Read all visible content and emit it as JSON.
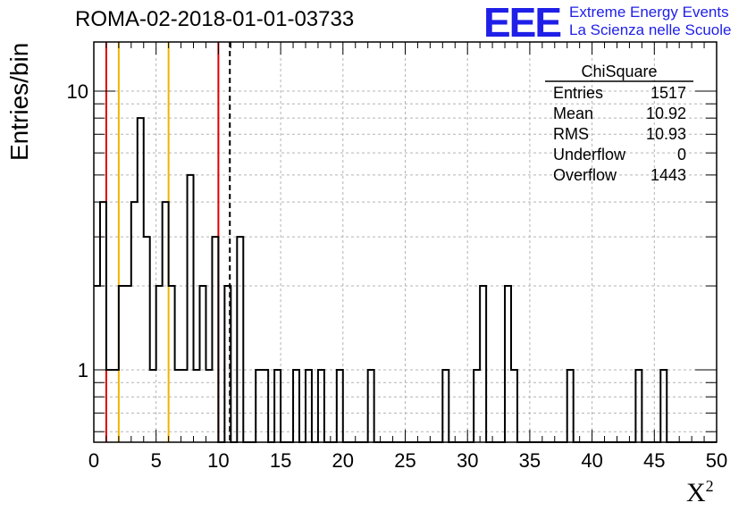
{
  "title": "ROMA-02-2018-01-01-03733",
  "brand": {
    "logo_text": "EEE",
    "line1": "Extreme Energy Events",
    "line2": "La Scienza nelle Scuole",
    "color": "#1f1fe8"
  },
  "stats_box": {
    "name": "ChiSquare",
    "rows": [
      {
        "label": "Entries",
        "value": "1517"
      },
      {
        "label": "Mean",
        "value": "10.92"
      },
      {
        "label": "RMS",
        "value": "10.93"
      },
      {
        "label": "Underflow",
        "value": "0"
      },
      {
        "label": "Overflow",
        "value": "1443"
      }
    ]
  },
  "chart_data": {
    "type": "histogram",
    "xlabel": "X",
    "xlabel_superscript": "2",
    "ylabel": "Entries/bin",
    "xlim": [
      0,
      50
    ],
    "ylim": [
      0.55,
      15
    ],
    "yscale": "log",
    "bin_width": 0.5,
    "x_ticks": [
      "0",
      "5",
      "10",
      "15",
      "20",
      "25",
      "30",
      "35",
      "40",
      "45",
      "50"
    ],
    "y_ticks": [
      "1",
      "10"
    ],
    "grid": true,
    "bins": [
      {
        "x": 0.0,
        "y": 2
      },
      {
        "x": 0.5,
        "y": 4
      },
      {
        "x": 1.0,
        "y": 1
      },
      {
        "x": 1.5,
        "y": 1
      },
      {
        "x": 2.0,
        "y": 2
      },
      {
        "x": 2.5,
        "y": 2
      },
      {
        "x": 3.0,
        "y": 4
      },
      {
        "x": 3.5,
        "y": 8
      },
      {
        "x": 4.0,
        "y": 3
      },
      {
        "x": 4.5,
        "y": 1
      },
      {
        "x": 5.0,
        "y": 2
      },
      {
        "x": 5.5,
        "y": 4
      },
      {
        "x": 6.0,
        "y": 2
      },
      {
        "x": 6.5,
        "y": 1
      },
      {
        "x": 7.0,
        "y": 1
      },
      {
        "x": 7.5,
        "y": 5
      },
      {
        "x": 8.0,
        "y": 1
      },
      {
        "x": 8.5,
        "y": 2
      },
      {
        "x": 9.0,
        "y": 1
      },
      {
        "x": 9.5,
        "y": 3
      },
      {
        "x": 10.5,
        "y": 2
      },
      {
        "x": 11.5,
        "y": 3
      },
      {
        "x": 13.0,
        "y": 1
      },
      {
        "x": 13.5,
        "y": 1
      },
      {
        "x": 14.5,
        "y": 1
      },
      {
        "x": 16.0,
        "y": 1
      },
      {
        "x": 17.0,
        "y": 1
      },
      {
        "x": 18.0,
        "y": 1
      },
      {
        "x": 19.5,
        "y": 1
      },
      {
        "x": 22.0,
        "y": 1
      },
      {
        "x": 28.0,
        "y": 1
      },
      {
        "x": 30.5,
        "y": 1
      },
      {
        "x": 31.0,
        "y": 2
      },
      {
        "x": 33.0,
        "y": 2
      },
      {
        "x": 33.5,
        "y": 1
      },
      {
        "x": 38.0,
        "y": 1
      },
      {
        "x": 43.5,
        "y": 1
      },
      {
        "x": 45.5,
        "y": 1
      }
    ],
    "reference_lines": [
      {
        "x": 1,
        "color": "#e00000",
        "style": "solid"
      },
      {
        "x": 2,
        "color": "#f0b400",
        "style": "solid"
      },
      {
        "x": 6,
        "color": "#f0b400",
        "style": "solid"
      },
      {
        "x": 10,
        "color": "#e00000",
        "style": "solid"
      },
      {
        "x": 10.92,
        "color": "#000000",
        "style": "dashed"
      }
    ]
  }
}
